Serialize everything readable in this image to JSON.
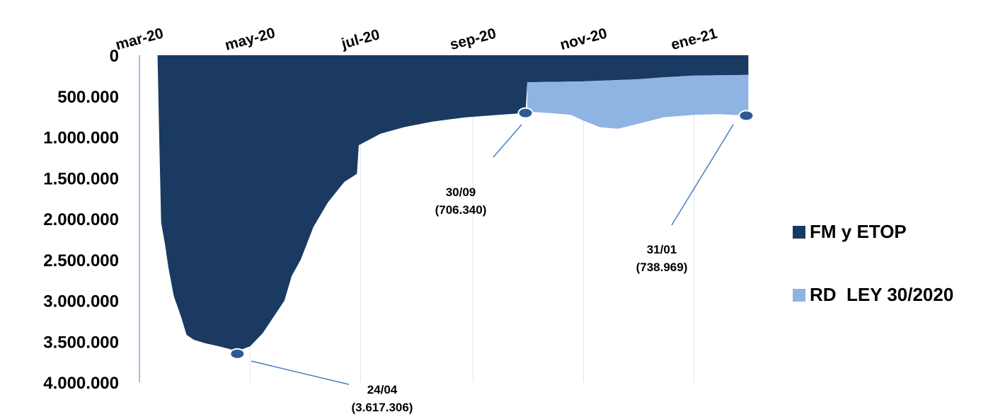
{
  "chart_data": {
    "type": "area",
    "colors": {
      "fm_etop": "#1a3a61",
      "rd_ley": "#8fb4e3",
      "annotation_line": "#4a7fc1"
    },
    "x_tick_labels": [
      "mar-20",
      "may-20",
      "jul-20",
      "sep-20",
      "nov-20",
      "ene-21"
    ],
    "x_range": [
      "2020-03-01",
      "2021-02-01"
    ],
    "y_tick_labels": [
      "0",
      "500.000",
      "1.000.000",
      "1.500.000",
      "2.000.000",
      "2.500.000",
      "3.000.000",
      "3.500.000",
      "4.000.000"
    ],
    "y_range": [
      0,
      4000000
    ],
    "y_inverted": true,
    "grid": "vertical",
    "legend_position": "right",
    "series": [
      {
        "name": "FM y ETOP",
        "color": "#1a3a61",
        "points": [
          [
            "2020-03-11",
            0
          ],
          [
            "2020-03-12",
            1100000
          ],
          [
            "2020-03-13",
            2050000
          ],
          [
            "2020-03-15",
            2300000
          ],
          [
            "2020-03-17",
            2600000
          ],
          [
            "2020-03-20",
            2950000
          ],
          [
            "2020-03-24",
            3200000
          ],
          [
            "2020-03-27",
            3420000
          ],
          [
            "2020-03-31",
            3480000
          ],
          [
            "2020-04-06",
            3520000
          ],
          [
            "2020-04-14",
            3560000
          ],
          [
            "2020-04-24",
            3617306
          ],
          [
            "2020-05-01",
            3560000
          ],
          [
            "2020-05-08",
            3400000
          ],
          [
            "2020-05-14",
            3200000
          ],
          [
            "2020-05-20",
            3000000
          ],
          [
            "2020-05-24",
            2700000
          ],
          [
            "2020-05-29",
            2500000
          ],
          [
            "2020-06-05",
            2100000
          ],
          [
            "2020-06-13",
            1800000
          ],
          [
            "2020-06-22",
            1550000
          ],
          [
            "2020-06-29",
            1450000
          ],
          [
            "2020-06-30",
            1100000
          ],
          [
            "2020-07-12",
            960000
          ],
          [
            "2020-07-25",
            880000
          ],
          [
            "2020-08-10",
            810000
          ],
          [
            "2020-08-28",
            760000
          ],
          [
            "2020-09-15",
            730000
          ],
          [
            "2020-09-30",
            706340
          ],
          [
            "2020-10-01",
            330000
          ],
          [
            "2020-10-31",
            320000
          ],
          [
            "2020-11-30",
            295000
          ],
          [
            "2020-12-15",
            270000
          ],
          [
            "2020-12-31",
            250000
          ],
          [
            "2021-01-31",
            240000
          ]
        ]
      },
      {
        "name": "RD  LEY 30/2020",
        "color": "#8fb4e3",
        "points": [
          [
            "2020-10-01",
            690000
          ],
          [
            "2020-10-15",
            710000
          ],
          [
            "2020-10-25",
            730000
          ],
          [
            "2020-11-01",
            800000
          ],
          [
            "2020-11-10",
            880000
          ],
          [
            "2020-11-20",
            900000
          ],
          [
            "2020-12-01",
            840000
          ],
          [
            "2020-12-15",
            760000
          ],
          [
            "2021-01-01",
            730000
          ],
          [
            "2021-01-15",
            720000
          ],
          [
            "2021-01-31",
            738969
          ]
        ]
      }
    ],
    "annotations": [
      {
        "date_label": "24/04",
        "value_label": "(3.617.306)",
        "x": "2020-04-24",
        "y": 3617306
      },
      {
        "date_label": "30/09",
        "value_label": "(706.340)",
        "x": "2020-09-30",
        "y": 706340
      },
      {
        "date_label": "31/01",
        "value_label": "(738.969)",
        "x": "2021-01-31",
        "y": 738969
      }
    ]
  }
}
